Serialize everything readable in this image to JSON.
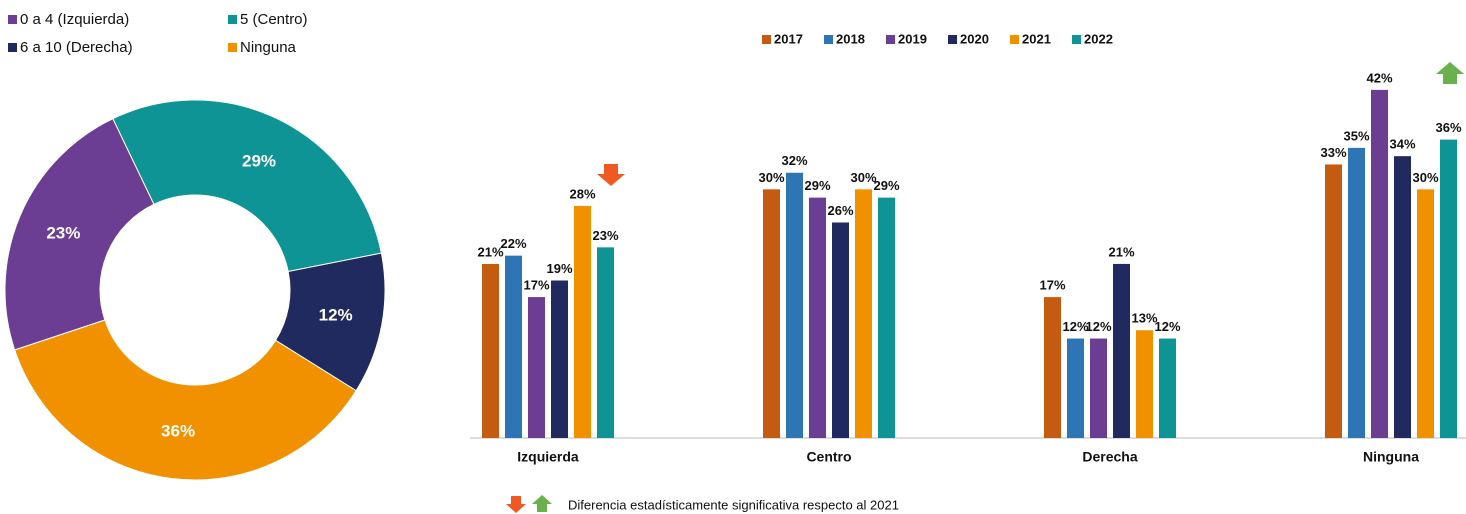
{
  "chart_data": [
    {
      "type": "donut",
      "categories": [
        "0 a 4 (Izquierda)",
        "5 (Centro)",
        "6 a 10 (Derecha)",
        "Ninguna"
      ],
      "values": [
        23,
        29,
        12,
        36
      ],
      "value_labels": [
        "23%",
        "29%",
        "12%",
        "36%"
      ],
      "colors": [
        "#6b3d93",
        "#0f9495",
        "#212a5e",
        "#f29100"
      ],
      "legend": "top-left"
    },
    {
      "type": "bar",
      "categories": [
        "Izquierda",
        "Centro",
        "Derecha",
        "Ninguna"
      ],
      "series": [
        {
          "name": "2017",
          "color": "#c55a11",
          "values": [
            21,
            30,
            17,
            33
          ],
          "value_labels": [
            "21%",
            "30%",
            "17%",
            "33%"
          ]
        },
        {
          "name": "2018",
          "color": "#2e75b6",
          "values": [
            22,
            32,
            12,
            35
          ],
          "value_labels": [
            "22%",
            "32%",
            "12%",
            "35%"
          ]
        },
        {
          "name": "2019",
          "color": "#6b3d93",
          "values": [
            17,
            29,
            12,
            42
          ],
          "value_labels": [
            "17%",
            "29%",
            "12%",
            "42%"
          ]
        },
        {
          "name": "2020",
          "color": "#212a5e",
          "values": [
            19,
            26,
            21,
            34
          ],
          "value_labels": [
            "19%",
            "26%",
            "21%",
            "34%"
          ]
        },
        {
          "name": "2021",
          "color": "#f29100",
          "values": [
            28,
            30,
            13,
            30
          ],
          "value_labels": [
            "28%",
            "30%",
            "13%",
            "30%"
          ]
        },
        {
          "name": "2022",
          "color": "#0f9495",
          "values": [
            23,
            29,
            12,
            36
          ],
          "value_labels": [
            "23%",
            "29%",
            "12%",
            "36%"
          ]
        }
      ],
      "ylim": [
        0,
        45
      ],
      "legend": "top",
      "note": "Diferencia estadísticamente significativa respecto al 2021"
    }
  ]
}
